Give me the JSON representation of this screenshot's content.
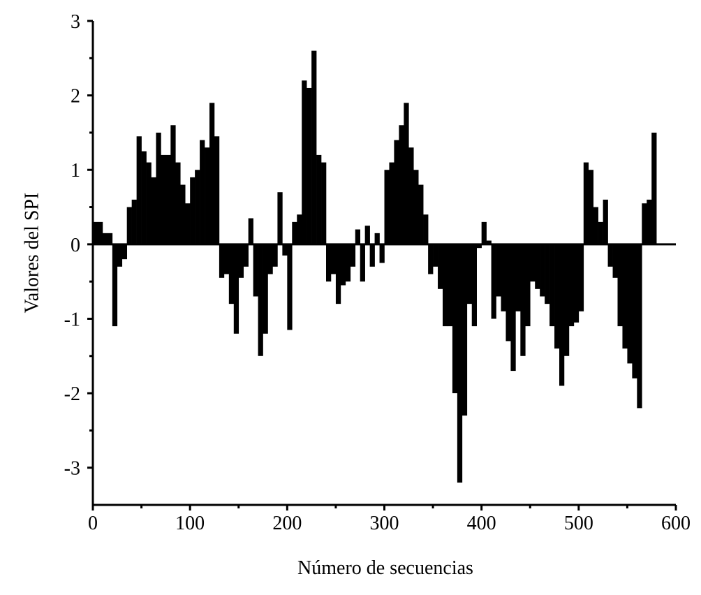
{
  "chart_data": {
    "type": "bar",
    "xlabel": "Número de secuencias",
    "ylabel": "Valores del SPI",
    "color": "#000000",
    "x": [
      0,
      5,
      10,
      15,
      20,
      25,
      30,
      35,
      40,
      45,
      50,
      55,
      60,
      65,
      70,
      75,
      80,
      85,
      90,
      95,
      100,
      105,
      110,
      115,
      120,
      125,
      130,
      135,
      140,
      145,
      150,
      155,
      160,
      165,
      170,
      175,
      180,
      185,
      190,
      195,
      200,
      205,
      210,
      215,
      220,
      225,
      230,
      235,
      240,
      245,
      250,
      255,
      260,
      265,
      270,
      275,
      280,
      285,
      290,
      295,
      300,
      305,
      310,
      315,
      320,
      325,
      330,
      335,
      340,
      345,
      350,
      355,
      360,
      365,
      370,
      375,
      380,
      385,
      390,
      395,
      400,
      405,
      410,
      415,
      420,
      425,
      430,
      435,
      440,
      445,
      450,
      455,
      460,
      465,
      470,
      475,
      480,
      485,
      490,
      495,
      500,
      505,
      510,
      515,
      520,
      525,
      530,
      535,
      540,
      545,
      550,
      555,
      560,
      565,
      570,
      575
    ],
    "values": [
      0.3,
      0.3,
      0.15,
      0.15,
      -1.1,
      -0.3,
      -0.2,
      0.5,
      0.6,
      1.45,
      1.25,
      1.1,
      0.9,
      1.5,
      1.2,
      1.2,
      1.6,
      1.1,
      0.8,
      0.55,
      0.9,
      1.0,
      1.4,
      1.3,
      1.9,
      1.45,
      -0.45,
      -0.4,
      -0.8,
      -1.2,
      -0.45,
      -0.3,
      0.35,
      -0.7,
      -1.5,
      -1.2,
      -0.4,
      -0.3,
      0.7,
      -0.15,
      -1.15,
      0.3,
      0.4,
      2.2,
      2.1,
      2.6,
      1.2,
      1.1,
      -0.5,
      -0.4,
      -0.8,
      -0.55,
      -0.5,
      -0.3,
      0.2,
      -0.5,
      0.25,
      -0.3,
      0.15,
      -0.25,
      1.0,
      1.1,
      1.4,
      1.6,
      1.9,
      1.3,
      1.0,
      0.8,
      0.4,
      -0.4,
      -0.3,
      -0.6,
      -1.1,
      -1.1,
      -2.0,
      -3.2,
      -2.3,
      -0.8,
      -1.1,
      -0.05,
      0.3,
      0.05,
      -1.0,
      -0.7,
      -0.9,
      -1.3,
      -1.7,
      -0.9,
      -1.5,
      -1.1,
      -0.5,
      -0.6,
      -0.7,
      -0.8,
      -1.1,
      -1.4,
      -1.9,
      -1.5,
      -1.1,
      -1.05,
      -0.9,
      1.1,
      1.0,
      0.5,
      0.3,
      0.6,
      -0.3,
      -0.45,
      -1.1,
      -1.4,
      -1.6,
      -1.8,
      -2.2,
      0.55,
      0.6,
      1.5
    ],
    "xlim": [
      0,
      600
    ],
    "ylim": [
      -3.5,
      3
    ],
    "xticks": [
      0,
      100,
      200,
      300,
      400,
      500,
      600
    ],
    "yticks": [
      -3,
      -2,
      -1,
      0,
      1,
      2,
      3
    ]
  }
}
